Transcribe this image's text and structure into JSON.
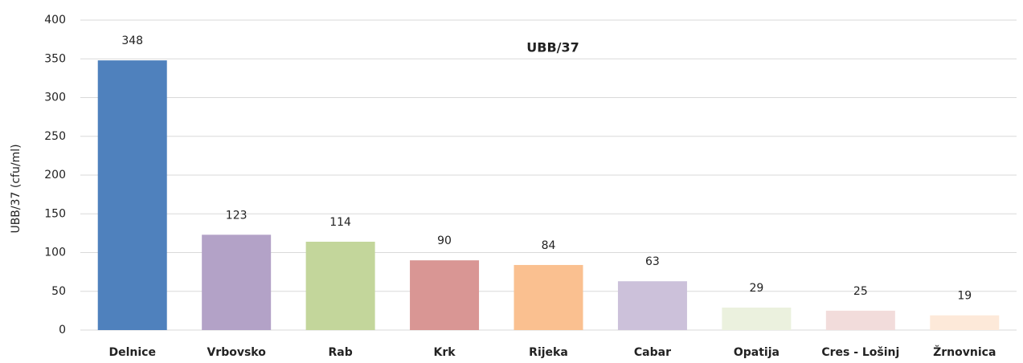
{
  "chart_data": {
    "type": "bar",
    "title": "UBB/37",
    "y_label": "UBB/37 (cfu/ml)",
    "categories": [
      "Delnice",
      "Vrbovsko",
      "Rab",
      "Krk",
      "Rijeka",
      "Cabar",
      "Opatija",
      "Cres - Lošinj",
      "Žrnovnica"
    ],
    "values": [
      348,
      123,
      114,
      90,
      84,
      63,
      29,
      25,
      19
    ],
    "colors": [
      "#4f81bd",
      "#b3a2c7",
      "#c3d69b",
      "#d99694",
      "#fac090",
      "#ccc1da",
      "#ebf1de",
      "#f2dcdb",
      "#fde9d9"
    ],
    "ylim": [
      0,
      400
    ],
    "yticks": [
      0,
      50,
      100,
      150,
      200,
      250,
      300,
      350,
      400
    ],
    "grid": true
  }
}
